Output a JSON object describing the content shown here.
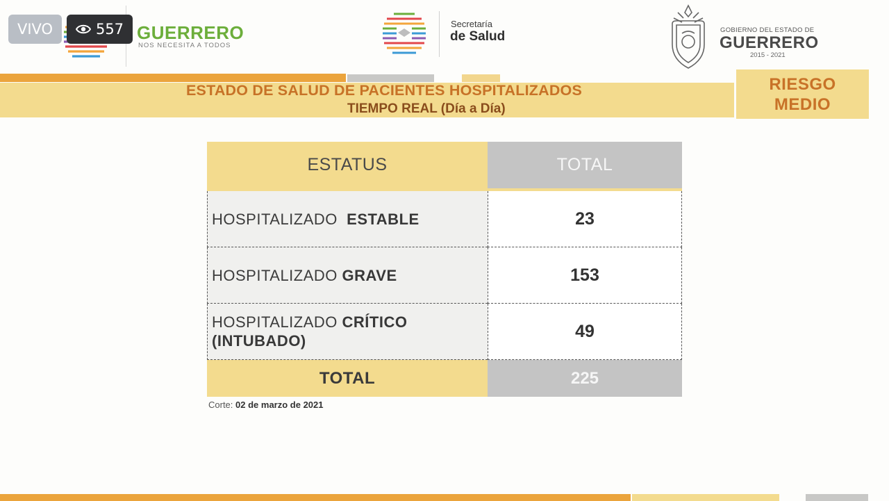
{
  "overlay": {
    "live_label": "VIVO",
    "viewer_count": "557",
    "viewer_icon": "eye-icon"
  },
  "header": {
    "guerrero_brand": "GUERRERO",
    "guerrero_tagline": "NOS NECESITA A TODOS",
    "secretaria_line1": "Secretaría",
    "secretaria_line2": "de Salud",
    "gobierno_line1": "GOBIERNO DEL ESTADO DE",
    "gobierno_line2": "GUERRERO",
    "gobierno_years": "2015 - 2021"
  },
  "banner": {
    "title": "ESTADO DE SALUD DE PACIENTES HOSPITALIZADOS",
    "subtitle": "TIEMPO REAL (Día a Día)",
    "risk_line1": "RIESGO",
    "risk_line2": "MEDIO"
  },
  "table": {
    "columns": [
      "ESTATUS",
      "TOTAL"
    ],
    "rows": [
      {
        "label_light": "HOSPITALIZADO ",
        "label_bold": "ESTABLE",
        "value": "23"
      },
      {
        "label_light": "HOSPITALIZADO ",
        "label_bold": "GRAVE",
        "value": "153"
      },
      {
        "label_light": "HOSPITALIZADO ",
        "label_bold": "CRÍTICO",
        "label_bold2": "(INTUBADO)",
        "value": "49"
      }
    ],
    "total_label": "TOTAL",
    "total_value": "225"
  },
  "footer_note": {
    "prefix": "Corte:",
    "date": "02 de marzo de 2021"
  },
  "colors": {
    "orange": "#eba43c",
    "yellow": "#f3db8e",
    "gray": "#c4c4c4",
    "green": "#6cae3b",
    "title_orange": "#c77227"
  }
}
